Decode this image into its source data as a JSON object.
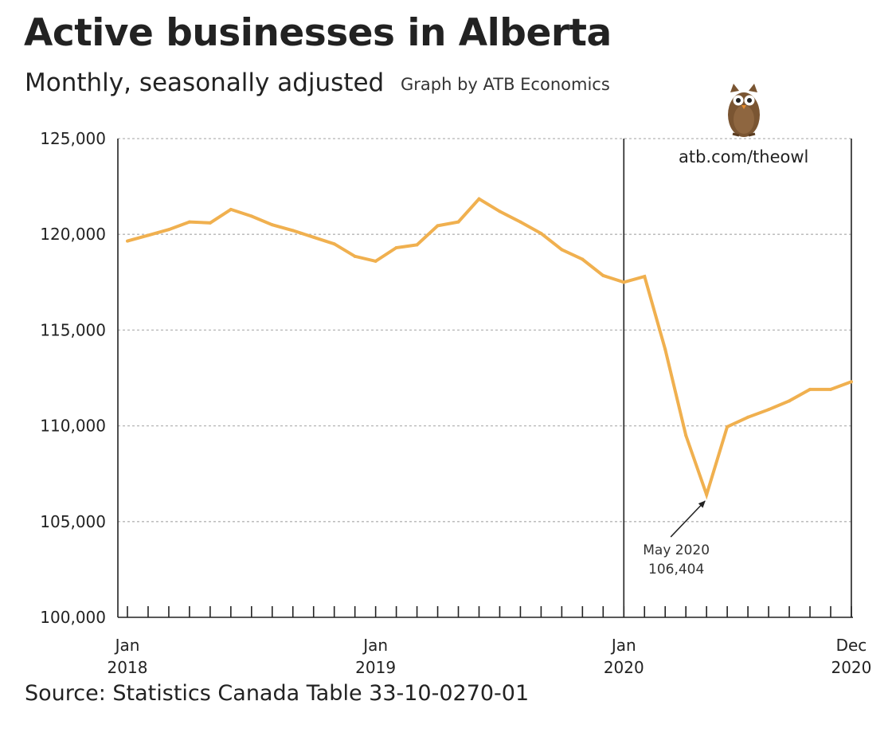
{
  "header": {
    "title": "Active businesses in Alberta",
    "subtitle": "Monthly, seasonally adjusted",
    "credit": "Graph by ATB Economics"
  },
  "branding": {
    "website": "atb.com/theowl",
    "mascot_icon": "owl-icon"
  },
  "footer": {
    "source": "Source: Statistics Canada Table 33-10-0270-01"
  },
  "colors": {
    "line": "#f0b04f",
    "text": "#222222",
    "grid": "#b5b5b5",
    "axis": "#222222"
  },
  "chart_data": {
    "type": "line",
    "title": "Active businesses in Alberta",
    "subtitle": "Monthly, seasonally adjusted",
    "xlabel": "",
    "ylabel": "",
    "ylim": [
      100000,
      125000
    ],
    "y_ticks": [
      {
        "value": 100000,
        "label": "100,000"
      },
      {
        "value": 105000,
        "label": "105,000"
      },
      {
        "value": 110000,
        "label": "110,000"
      },
      {
        "value": 115000,
        "label": "115,000"
      },
      {
        "value": 120000,
        "label": "120,000"
      },
      {
        "value": 125000,
        "label": "125,000"
      }
    ],
    "x_tick_labels": [
      {
        "index": 0,
        "month": "Jan",
        "year": "2018"
      },
      {
        "index": 12,
        "month": "Jan",
        "year": "2019"
      },
      {
        "index": 24,
        "month": "Jan",
        "year": "2020"
      },
      {
        "index": 35,
        "month": "Dec",
        "year": "2020"
      }
    ],
    "grid": "horizontal dashed",
    "vertical_markers": [
      24,
      35
    ],
    "series": [
      {
        "name": "Active businesses",
        "x": [
          "2018-01",
          "2018-02",
          "2018-03",
          "2018-04",
          "2018-05",
          "2018-06",
          "2018-07",
          "2018-08",
          "2018-09",
          "2018-10",
          "2018-11",
          "2018-12",
          "2019-01",
          "2019-02",
          "2019-03",
          "2019-04",
          "2019-05",
          "2019-06",
          "2019-07",
          "2019-08",
          "2019-09",
          "2019-10",
          "2019-11",
          "2019-12",
          "2020-01",
          "2020-02",
          "2020-03",
          "2020-04",
          "2020-05",
          "2020-06",
          "2020-07",
          "2020-08",
          "2020-09",
          "2020-10",
          "2020-11",
          "2020-12"
        ],
        "values": [
          119650,
          119950,
          120250,
          120650,
          120600,
          121300,
          120950,
          120500,
          120200,
          119850,
          119500,
          118850,
          118600,
          119300,
          119450,
          120450,
          120650,
          121850,
          121200,
          120650,
          120050,
          119200,
          118700,
          117850,
          117500,
          117800,
          114000,
          109500,
          106404,
          109950,
          110450,
          110850,
          111300,
          111900,
          111900,
          112300
        ]
      }
    ],
    "annotations": [
      {
        "index": 28,
        "label": "May 2020",
        "value_label": "106,404"
      }
    ]
  }
}
